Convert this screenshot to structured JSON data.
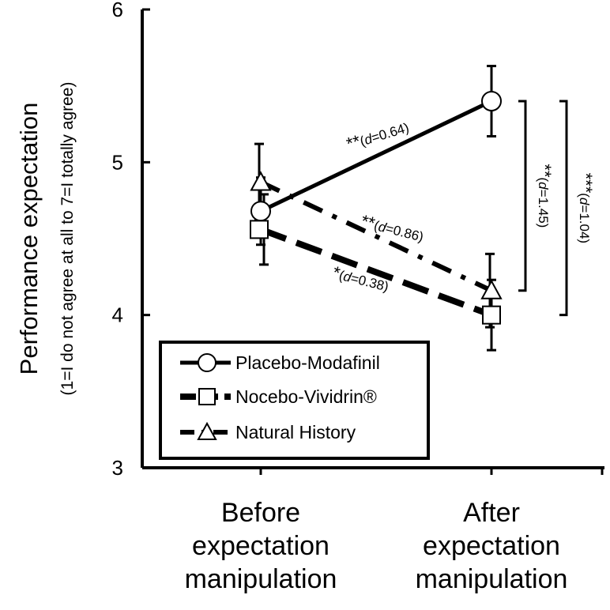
{
  "chart_data": {
    "type": "line",
    "ylabel": "Performance expectation",
    "ylabel_sub": "(1=I do not agree at all to 7=I totally agree)",
    "ylim": [
      3,
      6
    ],
    "yticks": [
      "3",
      "4",
      "5",
      "6"
    ],
    "categories": [
      [
        "Before",
        "expectation",
        "manipulation"
      ],
      [
        "After",
        "expectation",
        "manipulation"
      ]
    ],
    "series": [
      {
        "name": "Placebo-Modafinil",
        "marker": "circle",
        "line": "solid",
        "values": [
          4.68,
          5.4
        ],
        "error": [
          0.22,
          0.23
        ]
      },
      {
        "name": "Nocebo-Vividrin®",
        "marker": "square",
        "line": "dash",
        "values": [
          4.56,
          4.0
        ],
        "error": [
          0.23,
          0.23
        ]
      },
      {
        "name": "Natural History",
        "marker": "triangle",
        "line": "dashdot",
        "values": [
          4.87,
          4.16
        ],
        "error": [
          0.25,
          0.24
        ]
      }
    ],
    "annotations": [
      {
        "stars": "**",
        "effect": "=0.64",
        "series": "Placebo-Modafinil"
      },
      {
        "stars": "**",
        "effect": "=0.86",
        "series": "Natural History"
      },
      {
        "stars": "*",
        "effect": "=0.38",
        "series": "Nocebo-Vividrin®"
      }
    ],
    "brackets": [
      {
        "stars": "**",
        "effect": "=1.45",
        "from": 5.4,
        "to": 4.16
      },
      {
        "stars": "***",
        "effect": "=1.04",
        "from": 5.4,
        "to": 4.0
      }
    ],
    "effect_symbol": "d",
    "legend_position": "bottom-left",
    "grid": false
  }
}
